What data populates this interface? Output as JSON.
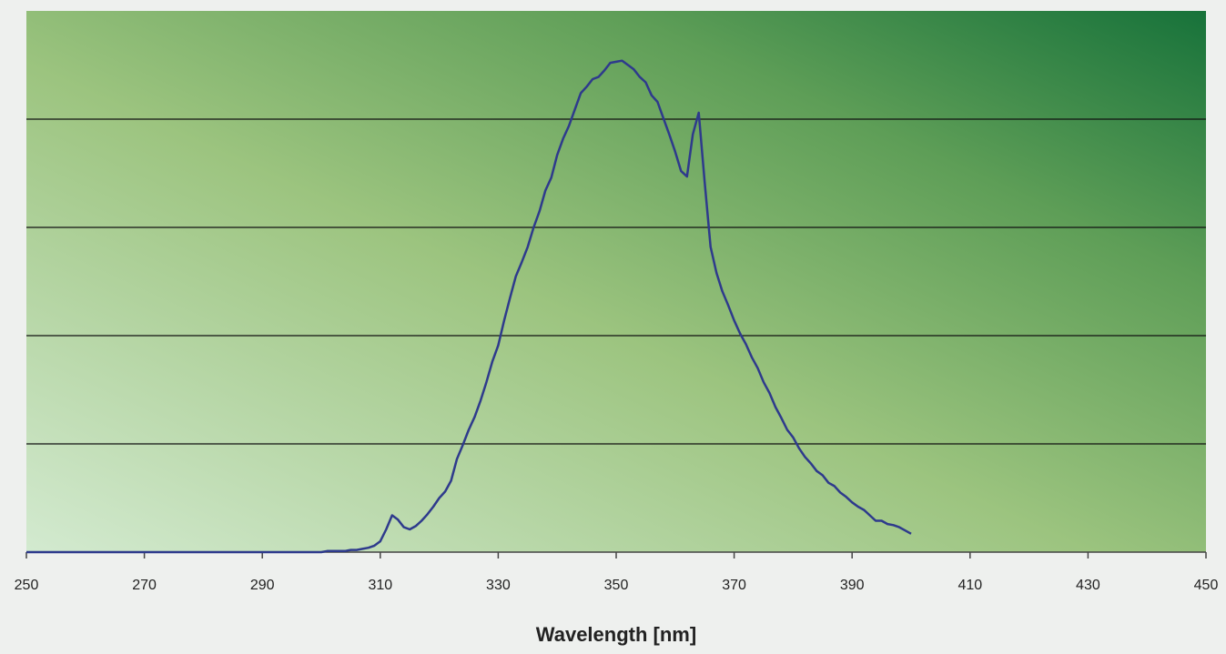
{
  "chart_data": {
    "type": "line",
    "xlabel": "Wavelength [nm]",
    "color": "#2e3a8c",
    "grid": true,
    "xlim": [
      250,
      450
    ],
    "xticks": [
      250,
      270,
      290,
      310,
      330,
      350,
      370,
      390,
      410,
      430,
      450
    ],
    "ylim": [
      0,
      5
    ],
    "yticks": [
      1,
      2,
      3,
      4
    ],
    "x": [
      250,
      300,
      301,
      302,
      303,
      304,
      305,
      306,
      307,
      308,
      309,
      310,
      311,
      312,
      313,
      314,
      315,
      316,
      317,
      318,
      319,
      320,
      321,
      322,
      323,
      324,
      325,
      326,
      327,
      328,
      329,
      330,
      331,
      332,
      333,
      334,
      335,
      336,
      337,
      338,
      339,
      340,
      341,
      342,
      343,
      344,
      345,
      346,
      347,
      348,
      349,
      350,
      351,
      352,
      353,
      354,
      355,
      356,
      357,
      358,
      359,
      360,
      361,
      362,
      363,
      364,
      365,
      366,
      367,
      368,
      369,
      370,
      371,
      372,
      373,
      374,
      375,
      376,
      377,
      378,
      379,
      380,
      381,
      382,
      383,
      384,
      385,
      386,
      387,
      388,
      389,
      390,
      391,
      392,
      393,
      394,
      395,
      396,
      397,
      398,
      399,
      400
    ],
    "values": [
      0,
      0,
      0.01,
      0.01,
      0.01,
      0.01,
      0.02,
      0.02,
      0.03,
      0.04,
      0.06,
      0.1,
      0.21,
      0.34,
      0.3,
      0.23,
      0.21,
      0.24,
      0.29,
      0.35,
      0.42,
      0.5,
      0.56,
      0.66,
      0.86,
      0.99,
      1.13,
      1.25,
      1.4,
      1.57,
      1.76,
      1.91,
      2.14,
      2.35,
      2.55,
      2.68,
      2.82,
      3.0,
      3.15,
      3.34,
      3.46,
      3.67,
      3.82,
      3.94,
      4.09,
      4.24,
      4.3,
      4.37,
      4.39,
      4.45,
      4.52,
      4.53,
      4.54,
      4.5,
      4.46,
      4.39,
      4.34,
      4.22,
      4.16,
      4.01,
      3.86,
      3.7,
      3.52,
      3.47,
      3.86,
      4.06,
      3.42,
      2.82,
      2.58,
      2.41,
      2.28,
      2.14,
      2.02,
      1.92,
      1.8,
      1.7,
      1.57,
      1.47,
      1.34,
      1.24,
      1.13,
      1.06,
      0.96,
      0.88,
      0.82,
      0.75,
      0.71,
      0.64,
      0.61,
      0.55,
      0.51,
      0.46,
      0.42,
      0.39,
      0.34,
      0.29,
      0.29,
      0.26,
      0.25,
      0.23,
      0.2,
      0.17
    ]
  }
}
